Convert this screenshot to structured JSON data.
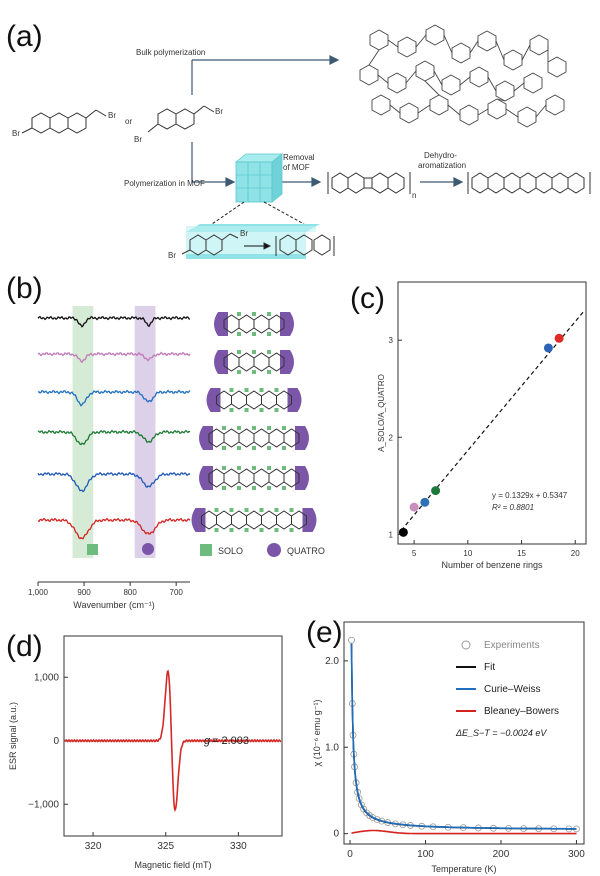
{
  "panels": {
    "a": {
      "label": "(a)",
      "bulk": "Bulk polymerization",
      "or": "or",
      "br": "Br",
      "mof_path": "Polymerization in MOF",
      "removal_line1": "Removal",
      "removal_line2": "of MOF",
      "dehydro_line1": "Dehydro-",
      "dehydro_line2": "aromatization",
      "n": "n"
    },
    "b": {
      "label": "(b)",
      "solo": "SOLO",
      "quatro": "QUATRO",
      "colors": {
        "solo": "#6dbb7d",
        "quatro": "#7a55a8"
      }
    },
    "c": {
      "label": "(c)"
    },
    "d": {
      "label": "(d)"
    },
    "e": {
      "label": "(e)"
    }
  },
  "chart_data": [
    {
      "panel": "b",
      "type": "line",
      "xlabel": "Wavenumber (cm⁻¹)",
      "xticks": [
        "1,000",
        "900",
        "800",
        "700"
      ],
      "xlim": [
        1000,
        670
      ],
      "x_reversed": true,
      "bands": [
        {
          "name": "SOLO",
          "range": [
            925,
            880
          ],
          "color": "#d6ebd6"
        },
        {
          "name": "QUATRO",
          "range": [
            790,
            745
          ],
          "color": "#ddd1ea"
        }
      ],
      "series": [
        {
          "color": "#111111",
          "dips": [
            {
              "x": 905,
              "depth": 0.6
            },
            {
              "x": 760,
              "depth": 0.5
            }
          ]
        },
        {
          "color": "#c07ab8",
          "dips": [
            {
              "x": 905,
              "depth": 0.5
            },
            {
              "x": 760,
              "depth": 0.4
            }
          ]
        },
        {
          "color": "#1f6fc0",
          "dips": [
            {
              "x": 905,
              "depth": 0.9
            },
            {
              "x": 760,
              "depth": 0.7
            }
          ]
        },
        {
          "color": "#1b7a33",
          "dips": [
            {
              "x": 905,
              "depth": 0.9
            },
            {
              "x": 760,
              "depth": 0.7
            }
          ]
        },
        {
          "color": "#2159b8",
          "dips": [
            {
              "x": 905,
              "depth": 1.2
            },
            {
              "x": 760,
              "depth": 0.9
            }
          ]
        },
        {
          "color": "#d4231f",
          "dips": [
            {
              "x": 905,
              "depth": 1.3
            },
            {
              "x": 760,
              "depth": 1.0
            }
          ]
        }
      ]
    },
    {
      "panel": "c",
      "type": "scatter",
      "xlabel": "Number of benzene rings",
      "ylabel": "A_SOLO/A_QUATRO",
      "xticks": [
        5,
        10,
        15,
        20
      ],
      "yticks": [
        1,
        2,
        3
      ],
      "xlim": [
        3.5,
        21
      ],
      "ylim": [
        0.9,
        3.6
      ],
      "points": [
        {
          "x": 4,
          "y": 1.02,
          "color": "#000000"
        },
        {
          "x": 5,
          "y": 1.28,
          "color": "#c98fbf"
        },
        {
          "x": 6,
          "y": 1.33,
          "color": "#2e6fb5"
        },
        {
          "x": 7,
          "y": 1.45,
          "color": "#1e7a3a"
        },
        {
          "x": 17.5,
          "y": 2.92,
          "color": "#2e62b5"
        },
        {
          "x": 18.5,
          "y": 3.02,
          "color": "#e02a26"
        }
      ],
      "fit": {
        "slope": 0.1329,
        "intercept": 0.5347
      },
      "fit_text": "y = 0.1329x + 0.5347",
      "r2_text": "R² = 0.8801"
    },
    {
      "panel": "d",
      "type": "line",
      "xlabel": "Magnetic field (mT)",
      "ylabel": "ESR signal (a.u.)",
      "xticks": [
        320,
        325,
        330
      ],
      "yticks": [
        -1000,
        0,
        1000
      ],
      "ytick_labels": [
        "−1,000",
        "0",
        "1,000"
      ],
      "xlim": [
        318,
        333
      ],
      "ylim": [
        -1500,
        1650
      ],
      "annotation_g": "g",
      "annotation_val": " = 2.003",
      "series": [
        {
          "color": "#d42a26",
          "center": 325.4,
          "width": 0.35,
          "amp": 1550
        }
      ]
    },
    {
      "panel": "e",
      "type": "scatter",
      "xlabel": "Temperature (K)",
      "ylabel": "χ (10⁻⁶ emu g⁻¹)",
      "xticks": [
        0,
        100,
        200,
        300
      ],
      "yticks": [
        0,
        1.0,
        2.0
      ],
      "ytick_labels": [
        "0",
        "1.0",
        "2.0"
      ],
      "xlim": [
        -8,
        310
      ],
      "ylim": [
        -0.12,
        2.45
      ],
      "legend": [
        "Experiments",
        "Fit",
        "Curie–Weiss",
        "Bleaney–Bowers"
      ],
      "legend_colors": [
        "#9a9a9a",
        "#111111",
        "#1f6fc0",
        "#d4231f"
      ],
      "delta_text": "ΔE_S−T = −0.0024 eV",
      "curie_C": 4.4,
      "bb_peak": {
        "x": 30,
        "y": 0.04
      }
    }
  ]
}
